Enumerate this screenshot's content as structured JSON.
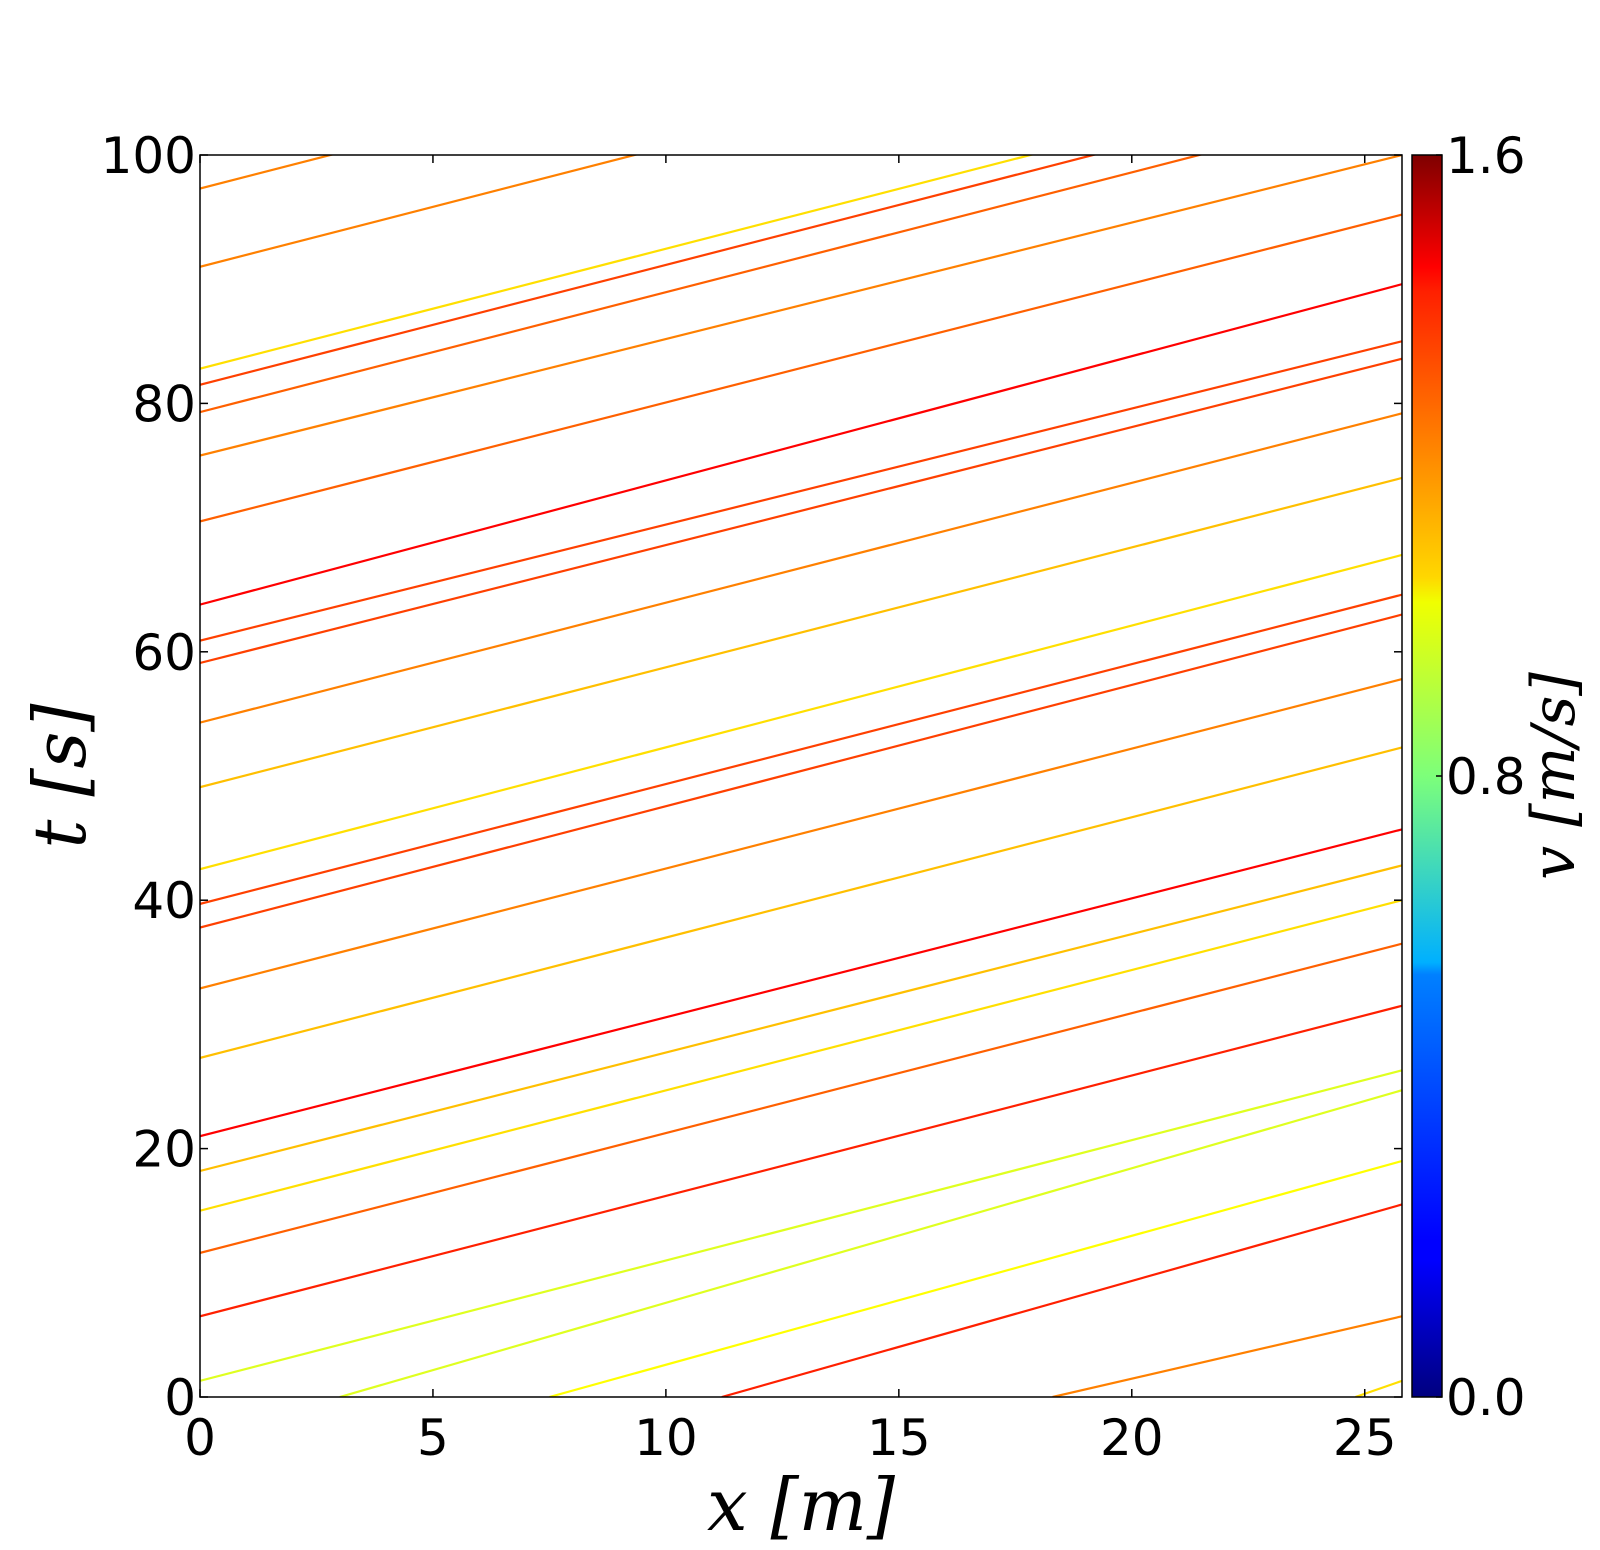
{
  "chart_data": {
    "type": "line",
    "title": "",
    "xlabel": "x [m]",
    "ylabel": "t [s]",
    "xlim": [
      0,
      25.8
    ],
    "ylim": [
      0,
      100
    ],
    "xticks": [
      "0",
      "5",
      "10",
      "15",
      "20",
      "25"
    ],
    "yticks": [
      "0",
      "20",
      "40",
      "60",
      "80",
      "100"
    ],
    "colorbar": {
      "label": "v [m/s]",
      "range": [
        0.0,
        1.6
      ],
      "ticks": [
        "0.0",
        "0.8",
        "1.6"
      ],
      "colormap": "jet"
    },
    "trajectories": [
      {
        "x": [
          3.0,
          25.8
        ],
        "t": [
          0,
          24.7
        ],
        "v": 0.95
      },
      {
        "x": [
          7.5,
          25.8
        ],
        "t": [
          0,
          19.0
        ],
        "v": 1.0
      },
      {
        "x": [
          11.2,
          25.8
        ],
        "t": [
          0,
          15.5
        ],
        "v": 1.35
      },
      {
        "x": [
          18.3,
          25.8
        ],
        "t": [
          0,
          6.5
        ],
        "v": 1.2
      },
      {
        "x": [
          24.8,
          25.8
        ],
        "t": [
          0,
          1.3
        ],
        "v": 1.05
      },
      {
        "x": [
          0,
          25.8
        ],
        "t": [
          1.3,
          26.3
        ],
        "v": 0.95
      },
      {
        "x": [
          0,
          25.8
        ],
        "t": [
          6.5,
          31.5
        ],
        "v": 1.35
      },
      {
        "x": [
          0,
          25.8
        ],
        "t": [
          11.6,
          36.5
        ],
        "v": 1.25
      },
      {
        "x": [
          0,
          25.8
        ],
        "t": [
          15.0,
          40.0
        ],
        "v": 1.05
      },
      {
        "x": [
          0,
          25.8
        ],
        "t": [
          18.2,
          42.8
        ],
        "v": 1.1
      },
      {
        "x": [
          0,
          25.8
        ],
        "t": [
          21.0,
          45.7
        ],
        "v": 1.4
      },
      {
        "x": [
          0,
          25.8
        ],
        "t": [
          27.3,
          52.3
        ],
        "v": 1.1
      },
      {
        "x": [
          0,
          25.8
        ],
        "t": [
          32.9,
          57.8
        ],
        "v": 1.2
      },
      {
        "x": [
          0,
          25.8
        ],
        "t": [
          37.8,
          63.0
        ],
        "v": 1.3
      },
      {
        "x": [
          0,
          25.8
        ],
        "t": [
          39.7,
          64.6
        ],
        "v": 1.3
      },
      {
        "x": [
          0,
          25.8
        ],
        "t": [
          42.5,
          67.8
        ],
        "v": 1.05
      },
      {
        "x": [
          0,
          25.8
        ],
        "t": [
          49.1,
          74.0
        ],
        "v": 1.1
      },
      {
        "x": [
          0,
          25.8
        ],
        "t": [
          54.3,
          79.2
        ],
        "v": 1.2
      },
      {
        "x": [
          0,
          25.8
        ],
        "t": [
          59.1,
          83.6
        ],
        "v": 1.3
      },
      {
        "x": [
          0,
          25.8
        ],
        "t": [
          60.9,
          85.0
        ],
        "v": 1.3
      },
      {
        "x": [
          0,
          25.8
        ],
        "t": [
          63.8,
          89.6
        ],
        "v": 1.4
      },
      {
        "x": [
          0,
          25.8
        ],
        "t": [
          70.5,
          95.2
        ],
        "v": 1.25
      },
      {
        "x": [
          0,
          25.8
        ],
        "t": [
          75.8,
          100
        ],
        "v": 1.2
      },
      {
        "x": [
          0,
          25.8
        ],
        "t": [
          79.3,
          104.2
        ],
        "v": 1.25
      },
      {
        "x": [
          0,
          25.8
        ],
        "t": [
          81.5,
          106.4
        ],
        "v": 1.3
      },
      {
        "x": [
          0,
          25.8
        ],
        "t": [
          82.8,
          107.7
        ],
        "v": 1.05
      },
      {
        "x": [
          0,
          25.8
        ],
        "t": [
          91.0,
          115.9
        ],
        "v": 1.2
      },
      {
        "x": [
          0,
          25.8
        ],
        "t": [
          97.3,
          122.2
        ],
        "v": 1.2
      }
    ]
  }
}
